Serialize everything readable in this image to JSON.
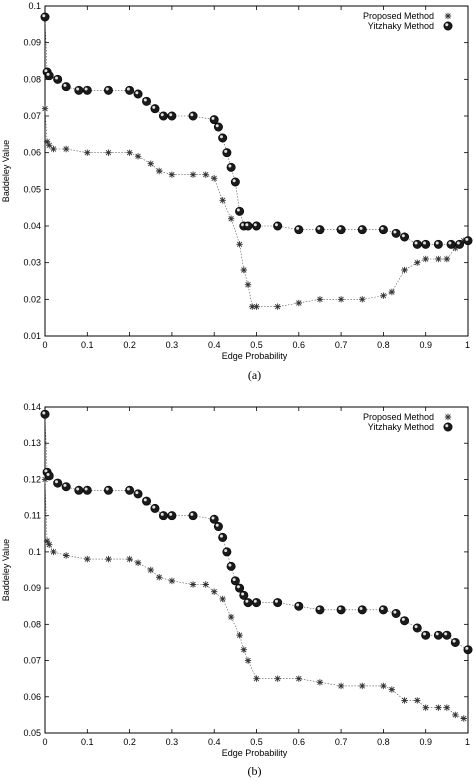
{
  "chart_data": [
    {
      "type": "scatter",
      "caption": "(a)",
      "xlabel": "Edge Probability",
      "ylabel": "Baddeley Value",
      "xlim": [
        0,
        1
      ],
      "ylim": [
        0.01,
        0.1
      ],
      "xticks": [
        "0",
        "0.1",
        "0.2",
        "0.3",
        "0.4",
        "0.5",
        "0.6",
        "0.7",
        "0.8",
        "0.9",
        "1"
      ],
      "yticks": [
        "0.01",
        "0.02",
        "0.03",
        "0.04",
        "0.05",
        "0.06",
        "0.07",
        "0.08",
        "0.09",
        "0.1"
      ],
      "legend_position": "top-right",
      "series": [
        {
          "name": "Proposed Method",
          "marker": "star",
          "x": [
            0,
            0.005,
            0.01,
            0.02,
            0.05,
            0.1,
            0.15,
            0.2,
            0.22,
            0.25,
            0.27,
            0.3,
            0.35,
            0.38,
            0.4,
            0.42,
            0.44,
            0.46,
            0.47,
            0.48,
            0.49,
            0.5,
            0.55,
            0.6,
            0.65,
            0.7,
            0.75,
            0.8,
            0.82,
            0.85,
            0.88,
            0.9,
            0.93,
            0.95,
            0.97,
            0.99
          ],
          "y": [
            0.072,
            0.063,
            0.062,
            0.061,
            0.061,
            0.06,
            0.06,
            0.06,
            0.059,
            0.057,
            0.055,
            0.054,
            0.054,
            0.054,
            0.053,
            0.047,
            0.042,
            0.035,
            0.028,
            0.024,
            0.018,
            0.018,
            0.018,
            0.019,
            0.02,
            0.02,
            0.02,
            0.021,
            0.022,
            0.028,
            0.03,
            0.031,
            0.031,
            0.031,
            0.034,
            0.036
          ]
        },
        {
          "name": "Yitzhaky Method",
          "marker": "circle",
          "x": [
            0,
            0.005,
            0.01,
            0.03,
            0.05,
            0.08,
            0.1,
            0.15,
            0.2,
            0.22,
            0.24,
            0.26,
            0.28,
            0.3,
            0.35,
            0.4,
            0.41,
            0.42,
            0.43,
            0.44,
            0.45,
            0.46,
            0.47,
            0.48,
            0.5,
            0.55,
            0.6,
            0.65,
            0.7,
            0.75,
            0.8,
            0.83,
            0.85,
            0.88,
            0.9,
            0.93,
            0.96,
            0.98,
            1.0
          ],
          "y": [
            0.097,
            0.082,
            0.081,
            0.08,
            0.078,
            0.077,
            0.077,
            0.077,
            0.077,
            0.076,
            0.074,
            0.072,
            0.07,
            0.07,
            0.07,
            0.069,
            0.067,
            0.064,
            0.06,
            0.056,
            0.052,
            0.044,
            0.04,
            0.04,
            0.04,
            0.04,
            0.039,
            0.039,
            0.039,
            0.039,
            0.039,
            0.038,
            0.037,
            0.035,
            0.035,
            0.035,
            0.035,
            0.035,
            0.036
          ]
        }
      ]
    },
    {
      "type": "scatter",
      "caption": "(b)",
      "xlabel": "Edge Probability",
      "ylabel": "Baddeley Value",
      "xlim": [
        0,
        1
      ],
      "ylim": [
        0.05,
        0.14
      ],
      "xticks": [
        "0",
        "0.1",
        "0.2",
        "0.3",
        "0.4",
        "0.5",
        "0.6",
        "0.7",
        "0.8",
        "0.9",
        "1"
      ],
      "yticks": [
        "0.05",
        "0.06",
        "0.07",
        "0.08",
        "0.09",
        "0.1",
        "0.11",
        "0.12",
        "0.13",
        "0.14"
      ],
      "legend_position": "top-right",
      "series": [
        {
          "name": "Proposed Method",
          "marker": "star",
          "x": [
            0,
            0.005,
            0.01,
            0.02,
            0.05,
            0.1,
            0.15,
            0.2,
            0.22,
            0.25,
            0.27,
            0.3,
            0.35,
            0.38,
            0.4,
            0.42,
            0.44,
            0.46,
            0.47,
            0.48,
            0.5,
            0.55,
            0.6,
            0.65,
            0.7,
            0.75,
            0.8,
            0.82,
            0.85,
            0.88,
            0.9,
            0.93,
            0.95,
            0.97,
            0.99
          ],
          "y": [
            0.12,
            0.103,
            0.102,
            0.1,
            0.099,
            0.098,
            0.098,
            0.098,
            0.097,
            0.095,
            0.093,
            0.092,
            0.091,
            0.091,
            0.089,
            0.087,
            0.082,
            0.077,
            0.073,
            0.07,
            0.065,
            0.065,
            0.065,
            0.064,
            0.063,
            0.063,
            0.063,
            0.062,
            0.059,
            0.059,
            0.057,
            0.057,
            0.057,
            0.055,
            0.054
          ]
        },
        {
          "name": "Yitzhaky Method",
          "marker": "circle",
          "x": [
            0,
            0.005,
            0.01,
            0.03,
            0.05,
            0.08,
            0.1,
            0.15,
            0.2,
            0.22,
            0.24,
            0.26,
            0.28,
            0.3,
            0.35,
            0.4,
            0.41,
            0.42,
            0.43,
            0.44,
            0.45,
            0.46,
            0.47,
            0.48,
            0.5,
            0.55,
            0.6,
            0.65,
            0.7,
            0.75,
            0.8,
            0.83,
            0.85,
            0.88,
            0.9,
            0.93,
            0.95,
            0.97,
            1.0
          ],
          "y": [
            0.138,
            0.122,
            0.121,
            0.119,
            0.118,
            0.117,
            0.117,
            0.117,
            0.117,
            0.116,
            0.114,
            0.112,
            0.11,
            0.11,
            0.11,
            0.109,
            0.107,
            0.104,
            0.1,
            0.096,
            0.092,
            0.09,
            0.088,
            0.086,
            0.086,
            0.086,
            0.085,
            0.084,
            0.084,
            0.084,
            0.084,
            0.083,
            0.081,
            0.079,
            0.077,
            0.077,
            0.077,
            0.075,
            0.073
          ]
        }
      ]
    }
  ]
}
